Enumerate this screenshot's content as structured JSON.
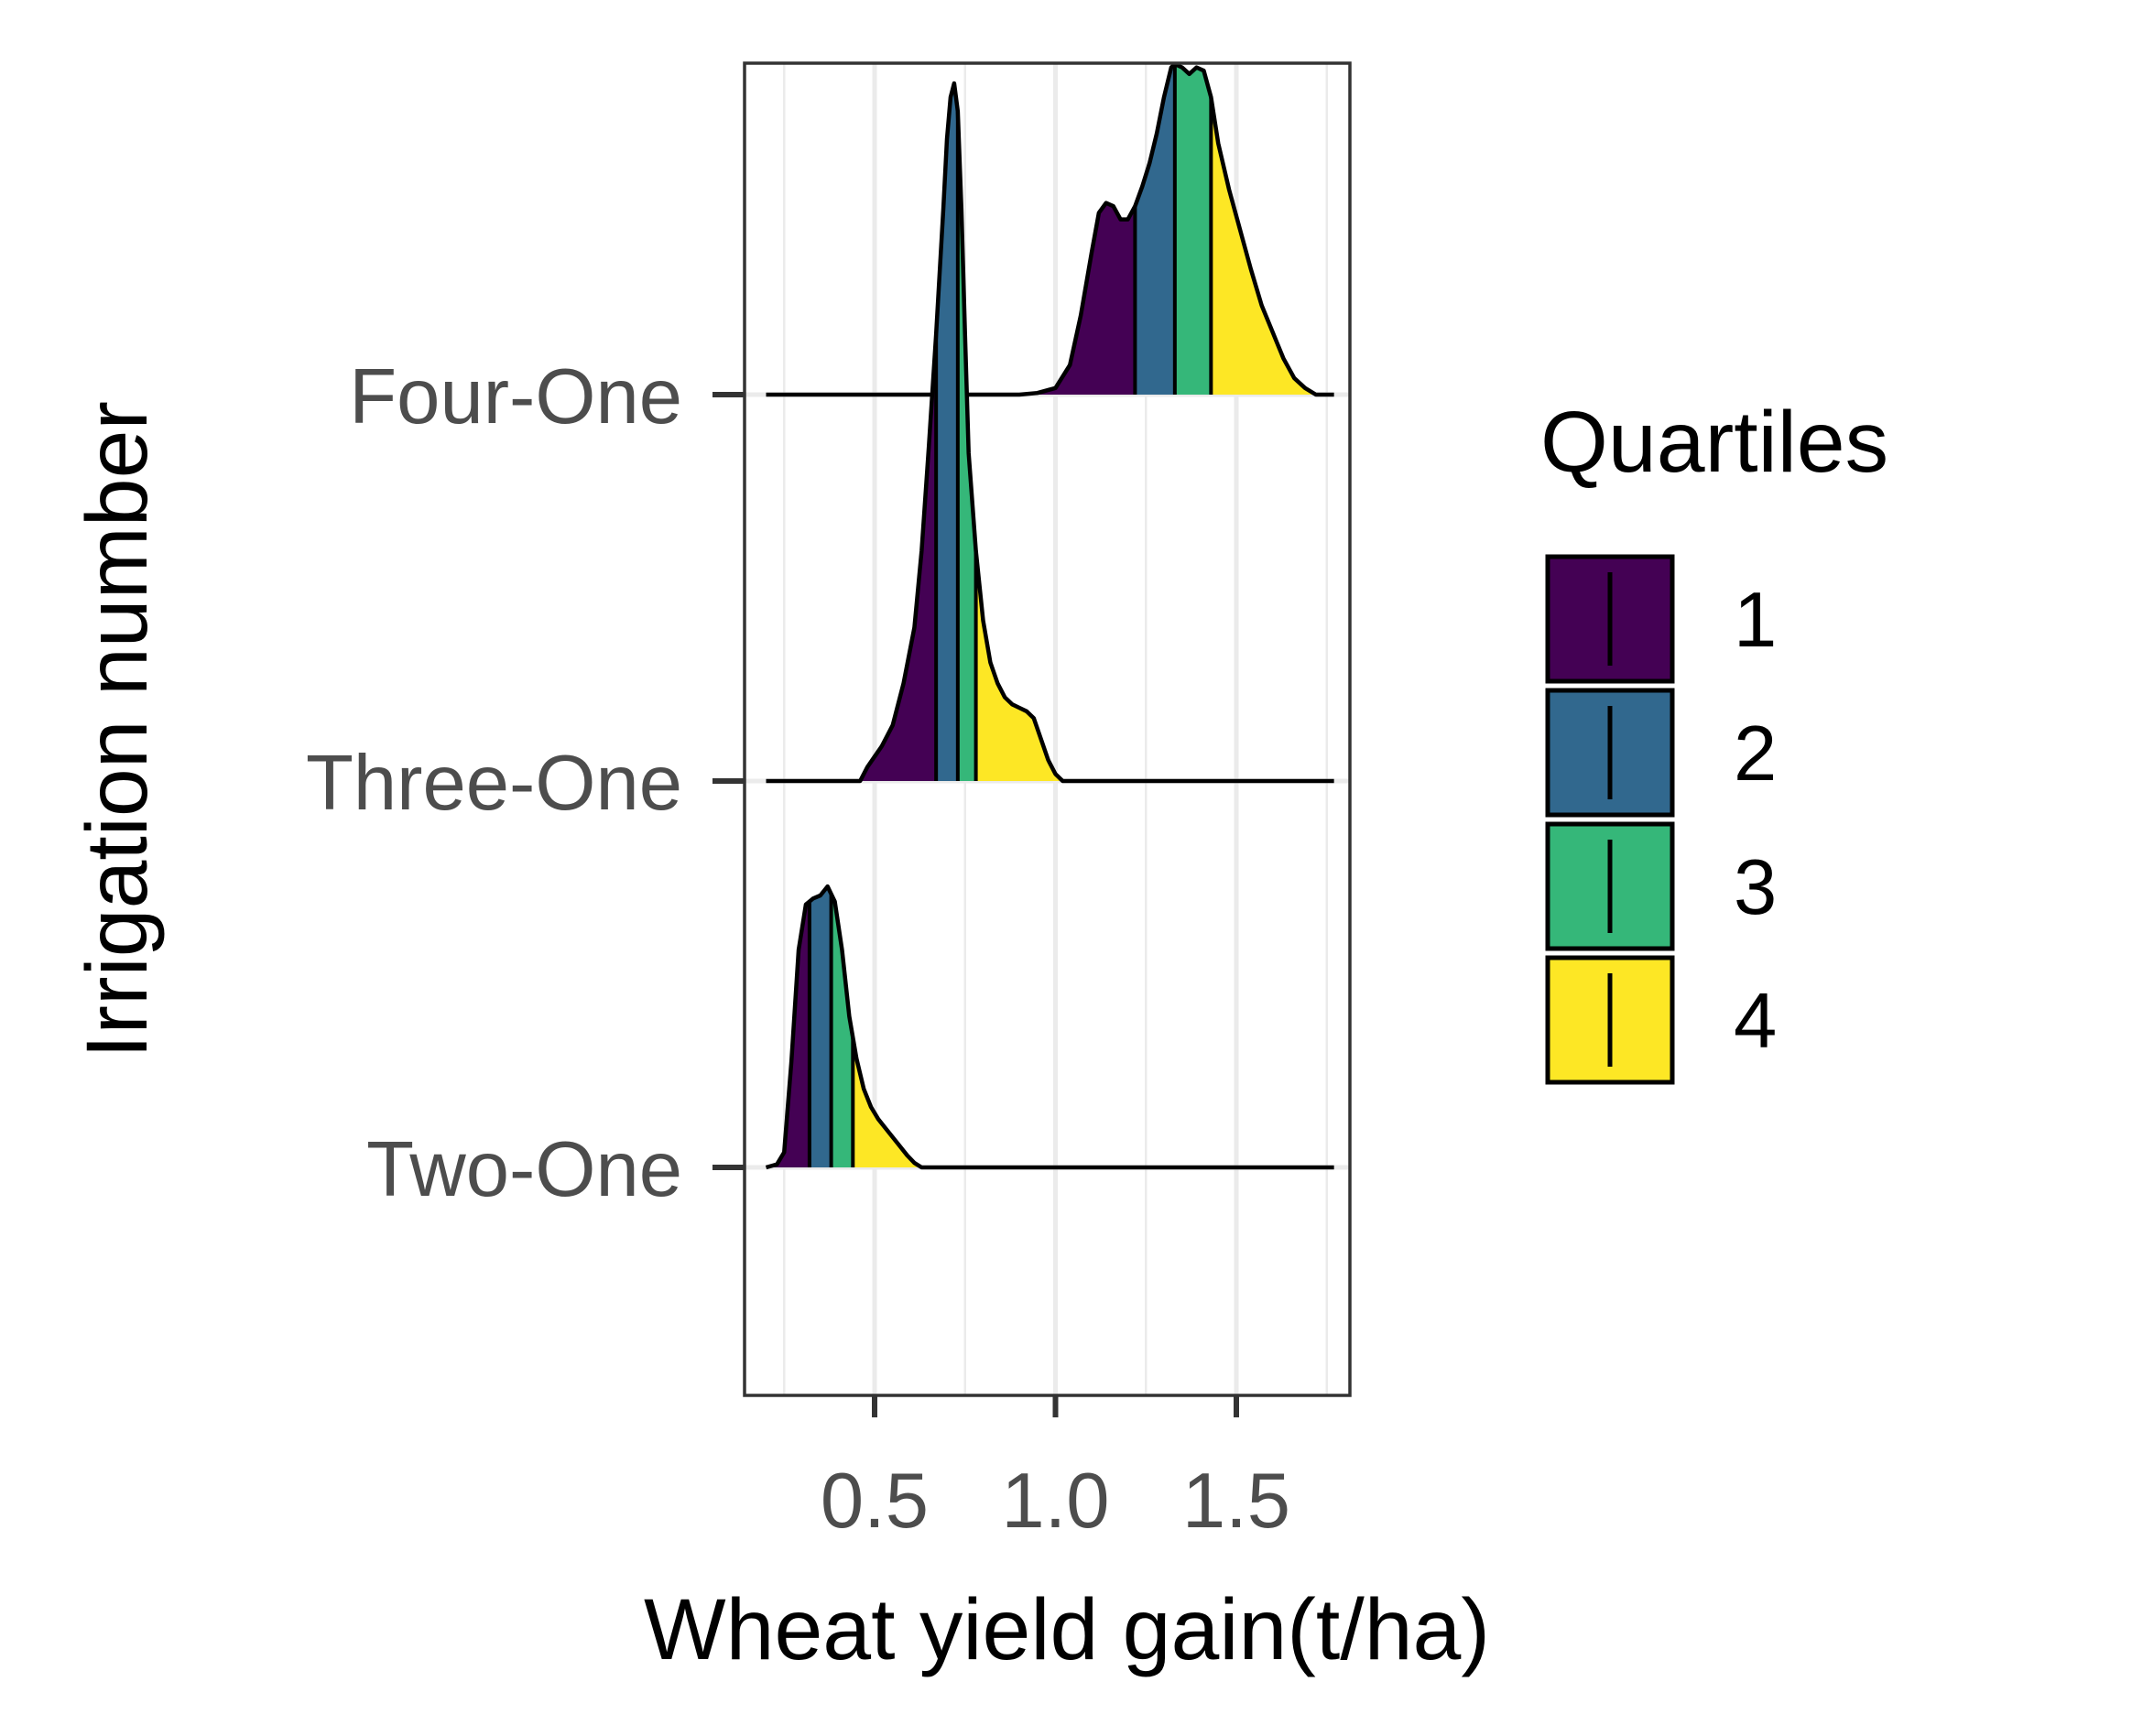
{
  "chart_data": {
    "type": "ridgeline density (quartile-shaded)",
    "xlabel": "Wheat yield gain(t/ha)",
    "ylabel": "Irrigation number",
    "xlim": [
      0.13,
      1.8
    ],
    "x_ticks": [
      0.5,
      1.0,
      1.5
    ],
    "x_tick_labels": [
      "0.5",
      "1.0",
      "1.5"
    ],
    "x_minor_gridlines": [
      0.25,
      0.75,
      1.25,
      1.75
    ],
    "categories": [
      "Two-One",
      "Three-One",
      "Four-One"
    ],
    "grid": true,
    "legend": {
      "title": "Quartiles",
      "position": "right",
      "items": [
        {
          "label": "1",
          "color": "#440154"
        },
        {
          "label": "2",
          "color": "#31688E"
        },
        {
          "label": "3",
          "color": "#35B779"
        },
        {
          "label": "4",
          "color": "#FDE725"
        }
      ]
    },
    "series": [
      {
        "name": "Two-One",
        "quartile_cuts": [
          0.32,
          0.38,
          0.44
        ],
        "points": [
          [
            0.2,
            0.0
          ],
          [
            0.23,
            0.01
          ],
          [
            0.25,
            0.05
          ],
          [
            0.27,
            0.35
          ],
          [
            0.29,
            0.72
          ],
          [
            0.31,
            0.87
          ],
          [
            0.33,
            0.89
          ],
          [
            0.35,
            0.9
          ],
          [
            0.37,
            0.93
          ],
          [
            0.39,
            0.88
          ],
          [
            0.41,
            0.72
          ],
          [
            0.43,
            0.5
          ],
          [
            0.45,
            0.36
          ],
          [
            0.47,
            0.26
          ],
          [
            0.49,
            0.2
          ],
          [
            0.51,
            0.16
          ],
          [
            0.53,
            0.13
          ],
          [
            0.55,
            0.1
          ],
          [
            0.57,
            0.07
          ],
          [
            0.59,
            0.04
          ],
          [
            0.61,
            0.015
          ],
          [
            0.63,
            0.0
          ],
          [
            0.7,
            0.0
          ],
          [
            1.0,
            0.0
          ],
          [
            1.5,
            0.0
          ],
          [
            1.77,
            0.0
          ]
        ]
      },
      {
        "name": "Three-One",
        "quartile_cuts": [
          0.67,
          0.73,
          0.78
        ],
        "points": [
          [
            0.2,
            0.0
          ],
          [
            0.35,
            0.0
          ],
          [
            0.46,
            0.0
          ],
          [
            0.48,
            0.02
          ],
          [
            0.5,
            0.035
          ],
          [
            0.52,
            0.05
          ],
          [
            0.55,
            0.08
          ],
          [
            0.58,
            0.14
          ],
          [
            0.61,
            0.22
          ],
          [
            0.63,
            0.33
          ],
          [
            0.65,
            0.48
          ],
          [
            0.67,
            0.64
          ],
          [
            0.69,
            0.82
          ],
          [
            0.7,
            0.92
          ],
          [
            0.71,
            0.98
          ],
          [
            0.72,
            1.0
          ],
          [
            0.73,
            0.96
          ],
          [
            0.74,
            0.82
          ],
          [
            0.75,
            0.64
          ],
          [
            0.76,
            0.47
          ],
          [
            0.78,
            0.33
          ],
          [
            0.8,
            0.23
          ],
          [
            0.82,
            0.17
          ],
          [
            0.84,
            0.14
          ],
          [
            0.86,
            0.12
          ],
          [
            0.88,
            0.11
          ],
          [
            0.9,
            0.105
          ],
          [
            0.92,
            0.1
          ],
          [
            0.94,
            0.09
          ],
          [
            0.96,
            0.06
          ],
          [
            0.98,
            0.03
          ],
          [
            1.0,
            0.01
          ],
          [
            1.02,
            0.0
          ],
          [
            1.5,
            0.0
          ],
          [
            1.77,
            0.0
          ]
        ]
      },
      {
        "name": "Four-One",
        "quartile_cuts": [
          1.22,
          1.33,
          1.43
        ],
        "points": [
          [
            0.2,
            0.0
          ],
          [
            0.9,
            0.0
          ],
          [
            0.95,
            0.005
          ],
          [
            1.0,
            0.02
          ],
          [
            1.04,
            0.09
          ],
          [
            1.07,
            0.24
          ],
          [
            1.1,
            0.43
          ],
          [
            1.12,
            0.55
          ],
          [
            1.14,
            0.58
          ],
          [
            1.16,
            0.57
          ],
          [
            1.18,
            0.53
          ],
          [
            1.2,
            0.53
          ],
          [
            1.22,
            0.57
          ],
          [
            1.24,
            0.63
          ],
          [
            1.26,
            0.7
          ],
          [
            1.28,
            0.79
          ],
          [
            1.3,
            0.9
          ],
          [
            1.32,
            0.99
          ],
          [
            1.33,
            1.0
          ],
          [
            1.35,
            0.99
          ],
          [
            1.37,
            0.97
          ],
          [
            1.39,
            0.99
          ],
          [
            1.41,
            0.98
          ],
          [
            1.43,
            0.9
          ],
          [
            1.45,
            0.76
          ],
          [
            1.48,
            0.62
          ],
          [
            1.51,
            0.5
          ],
          [
            1.54,
            0.38
          ],
          [
            1.57,
            0.27
          ],
          [
            1.6,
            0.19
          ],
          [
            1.63,
            0.11
          ],
          [
            1.66,
            0.05
          ],
          [
            1.69,
            0.02
          ],
          [
            1.72,
            0.0
          ],
          [
            1.77,
            0.0
          ]
        ]
      }
    ]
  }
}
